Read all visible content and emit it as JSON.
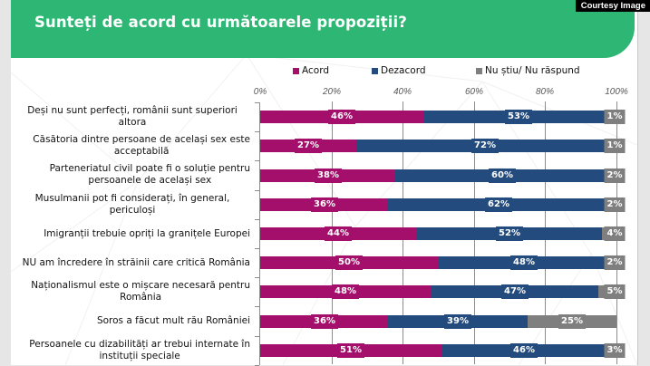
{
  "courtesy": "Courtesy Image",
  "colors": {
    "header": "#2db674",
    "acord": "#a30f6b",
    "dezacord": "#234b7d",
    "nu_stiu": "#7f7f7f"
  },
  "chart_data": {
    "type": "bar",
    "orientation": "horizontal",
    "stacked": true,
    "title": "Sunteți de acord cu următoarele propoziții?",
    "xlabel": "",
    "ylabel": "",
    "xlim": [
      0,
      100
    ],
    "x_ticks": [
      "0%",
      "20%",
      "40%",
      "60%",
      "80%",
      "100%"
    ],
    "grid": true,
    "legend_position": "top",
    "categories": [
      "Deși nu sunt perfecți,  românii sunt superiori altora",
      "Căsătoria dintre persoane de același sex este acceptabilă",
      "Parteneriatul civil poate fi o soluție pentru persoanele de același sex",
      "Musulmanii pot fi considerați, în general, periculoși",
      "Imigranții trebuie opriți la granițele Europei",
      "NU am încredere în străinii care critică România",
      "Naționalismul este o mișcare necesară pentru România",
      "Soros a făcut mult rău României",
      "Persoanele cu dizabilități ar trebui internate în instituții speciale"
    ],
    "category_lines": [
      [
        "Deși nu sunt perfecți,  românii sunt superiori altora"
      ],
      [
        "Căsătoria dintre persoane de același sex este",
        "acceptabilă"
      ],
      [
        "Parteneriatul civil poate fi o soluție pentru",
        "persoanele de același sex"
      ],
      [
        "Musulmanii pot fi considerați, în general, periculoși"
      ],
      [
        "Imigranții trebuie opriți la granițele Europei"
      ],
      [
        "NU am încredere în străinii care critică România"
      ],
      [
        "Naționalismul este o mișcare necesară pentru",
        "România"
      ],
      [
        "Soros a făcut mult rău României"
      ],
      [
        "Persoanele cu dizabilități ar trebui internate în",
        "instituții speciale"
      ]
    ],
    "series": [
      {
        "name": "Acord",
        "color": "#a30f6b",
        "values": [
          46,
          27,
          38,
          36,
          44,
          50,
          48,
          36,
          51
        ]
      },
      {
        "name": "Dezacord",
        "color": "#234b7d",
        "values": [
          53,
          72,
          60,
          62,
          52,
          48,
          47,
          39,
          46
        ]
      },
      {
        "name": "Nu știu/ Nu răspund",
        "color": "#7f7f7f",
        "values": [
          1,
          1,
          2,
          2,
          4,
          2,
          5,
          25,
          3
        ]
      }
    ],
    "value_suffix": "%"
  }
}
